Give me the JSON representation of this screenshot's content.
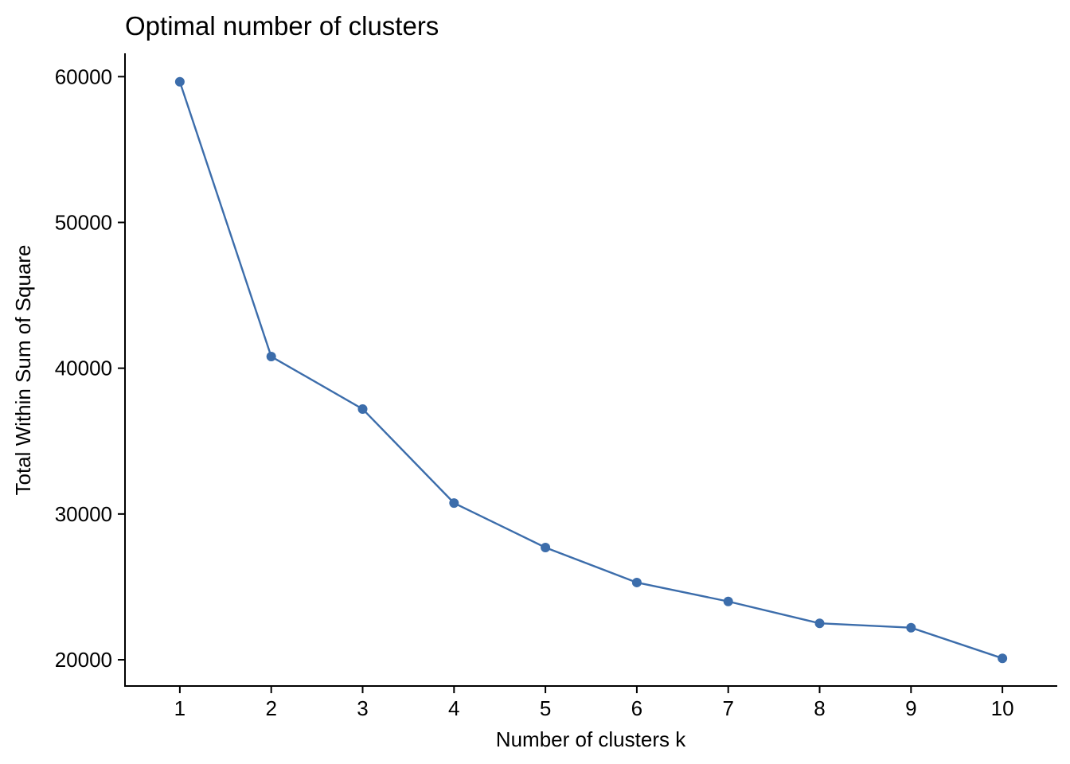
{
  "chart_data": {
    "type": "line",
    "title": "Optimal number of clusters",
    "xlabel": "Number of clusters k",
    "ylabel": "Total Within Sum of Square",
    "x": [
      1,
      2,
      3,
      4,
      5,
      6,
      7,
      8,
      9,
      10
    ],
    "x_tick_labels": [
      "1",
      "2",
      "3",
      "4",
      "5",
      "6",
      "7",
      "8",
      "9",
      "10"
    ],
    "y_ticks": [
      20000,
      30000,
      40000,
      50000,
      60000
    ],
    "y_tick_labels": [
      "20000",
      "30000",
      "40000",
      "50000",
      "60000"
    ],
    "ylim": [
      18200,
      61600
    ],
    "xlim": [
      0.4,
      10.6
    ],
    "grid": false,
    "series": [
      {
        "values": [
          59650,
          40800,
          37200,
          30750,
          27700,
          25300,
          24000,
          22500,
          22200,
          20100
        ],
        "color": "#3C6DAB",
        "marker": "circle"
      }
    ]
  }
}
